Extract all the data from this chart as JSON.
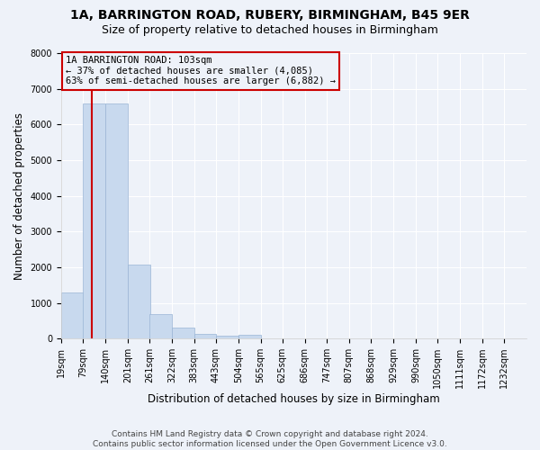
{
  "title": "1A, BARRINGTON ROAD, RUBERY, BIRMINGHAM, B45 9ER",
  "subtitle": "Size of property relative to detached houses in Birmingham",
  "xlabel": "Distribution of detached houses by size in Birmingham",
  "ylabel": "Number of detached properties",
  "footer_line1": "Contains HM Land Registry data © Crown copyright and database right 2024.",
  "footer_line2": "Contains public sector information licensed under the Open Government Licence v3.0.",
  "bar_color": "#c8d9ee",
  "bar_edge_color": "#9ab5d5",
  "annotation_text": "1A BARRINGTON ROAD: 103sqm\n← 37% of detached houses are smaller (4,085)\n63% of semi-detached houses are larger (6,882) →",
  "annotation_box_edge": "#cc0000",
  "property_line_color": "#cc0000",
  "property_line_x": 103,
  "categories": [
    "19sqm",
    "79sqm",
    "140sqm",
    "201sqm",
    "261sqm",
    "322sqm",
    "383sqm",
    "443sqm",
    "504sqm",
    "565sqm",
    "625sqm",
    "686sqm",
    "747sqm",
    "807sqm",
    "868sqm",
    "929sqm",
    "990sqm",
    "1050sqm",
    "1111sqm",
    "1172sqm",
    "1232sqm"
  ],
  "bin_edges": [
    19,
    79,
    140,
    201,
    261,
    322,
    383,
    443,
    504,
    565,
    625,
    686,
    747,
    807,
    868,
    929,
    990,
    1050,
    1111,
    1172,
    1232
  ],
  "bin_width": 61,
  "values": [
    1300,
    6600,
    6600,
    2070,
    680,
    300,
    130,
    90,
    110,
    0,
    0,
    0,
    0,
    0,
    0,
    0,
    0,
    0,
    0,
    0,
    0
  ],
  "ylim": [
    0,
    8000
  ],
  "yticks": [
    0,
    1000,
    2000,
    3000,
    4000,
    5000,
    6000,
    7000,
    8000
  ],
  "background_color": "#eef2f9",
  "grid_color": "#ffffff",
  "title_fontsize": 10,
  "subtitle_fontsize": 9,
  "axis_label_fontsize": 8.5,
  "tick_fontsize": 7,
  "footer_fontsize": 6.5,
  "annotation_fontsize": 7.5
}
